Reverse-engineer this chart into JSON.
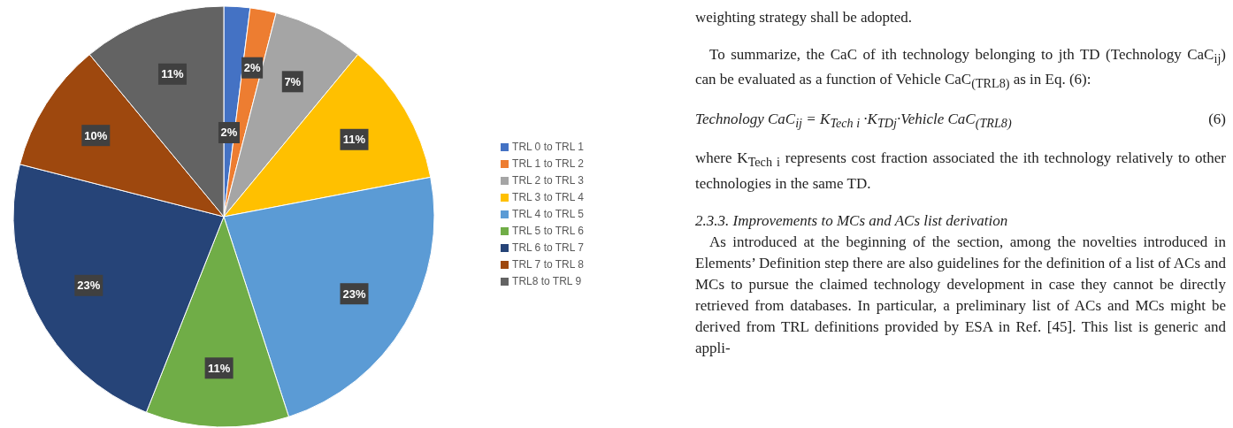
{
  "chart_data": {
    "type": "pie",
    "categories": [
      "TRL 0 to TRL 1",
      "TRL 1 to TRL 2",
      "TRL 2 to TRL 3",
      "TRL 3 to TRL 4",
      "TRL 4 to TRL 5",
      "TRL 5 to TRL 6",
      "TRL 6 to TRL 7",
      "TRL 7 to TRL 8",
      "TRL8 to TRL 9"
    ],
    "values": [
      2,
      2,
      7,
      11,
      23,
      11,
      23,
      10,
      11
    ],
    "colors": [
      "#4472c4",
      "#ed7d31",
      "#a5a5a5",
      "#ffc000",
      "#5b9bd5",
      "#70ad47",
      "#264478",
      "#9e480e",
      "#636363"
    ],
    "value_labels": [
      "2%",
      "2%",
      "7%",
      "11%",
      "23%",
      "11%",
      "23%",
      "10%",
      "11%"
    ],
    "legend": "right",
    "annotations": [
      "weighting strategy shall be adopted.",
      "To summarize, the CaC of ith technology belonging to jth TD (Technology CaC$_{ij}$) can be evaluated as a function of Vehicle CaC$_{(TRL8)}$ as in Eq. (6):",
      "Technology CaC$_{ij}$ = K$_{Tech i}$ ·K$_{TDj}$·Vehicle CaC$_{(TRL8)}$",
      "(6)",
      "where K$_{Tech i}$ represents cost fraction associated the ith technology relatively to other technologies in the same TD.",
      "2.3.3. Improvements to MCs and ACs list derivation",
      "As introduced at the beginning of the section, among the novelties introduced in Elements’ Definition step there are also guidelines for the definition of a list of ACs and MCs to pursue the claimed technology development in case they cannot be directly retrieved from databases. In particular, a preliminary list of ACs and MCs might be derived from TRL definitions provided by ESA in Ref. [45]. This list is generic and appli-"
    ]
  }
}
